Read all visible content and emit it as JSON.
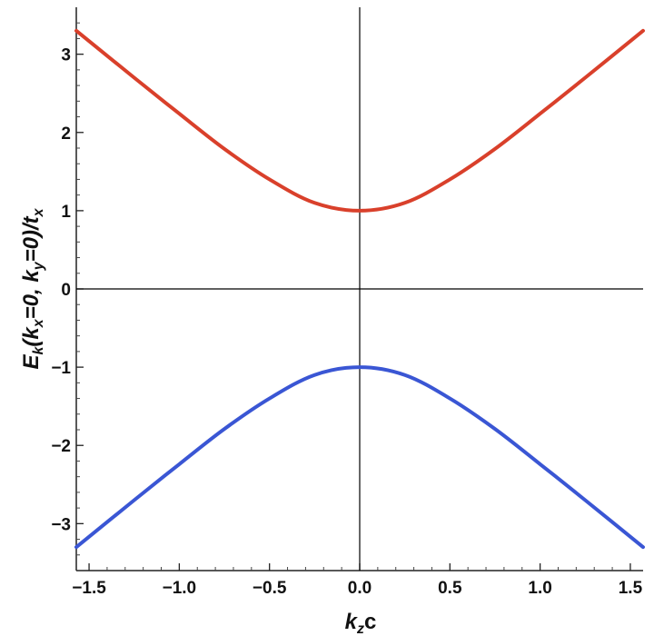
{
  "chart_data": {
    "type": "line",
    "xlabel": "k_z c",
    "ylabel": "E_k(k_x=0, k_y=0)/t_x",
    "xlabel_parts": {
      "k": "k",
      "sub": "z",
      "rest": "c"
    },
    "ylabel_parts": {
      "E": "E",
      "E_sub": "k",
      "open": "(",
      "kx": "k",
      "kx_sub": "x",
      "kx_val": "=0, ",
      "ky": "k",
      "ky_sub": "y",
      "ky_val": "=0)/",
      "t": "t",
      "t_sub": "x"
    },
    "xlim": [
      -1.5708,
      1.5708
    ],
    "ylim": [
      -3.6,
      3.6
    ],
    "x_ticks": [
      -1.5,
      -1.0,
      -0.5,
      0.0,
      0.5,
      1.0,
      1.5
    ],
    "x_tick_labels": [
      "−1.5",
      "−1.0",
      "−0.5",
      "0.0",
      "0.5",
      "1.0",
      "1.5"
    ],
    "y_ticks": [
      -3,
      -2,
      -1,
      0,
      1,
      2,
      3
    ],
    "y_tick_labels": [
      "−3",
      "−2",
      "−1",
      "0",
      "1",
      "2",
      "3"
    ],
    "grid": false,
    "series": [
      {
        "color": "#d9402b",
        "x": [
          -1.5708,
          -1.25,
          -1.0,
          -0.75,
          -0.5,
          -0.25,
          0.0,
          0.25,
          0.5,
          0.75,
          1.0,
          1.25,
          1.5708
        ],
        "y": [
          3.3,
          2.7,
          2.24,
          1.79,
          1.4,
          1.1,
          1.0,
          1.1,
          1.4,
          1.79,
          2.24,
          2.7,
          3.3
        ]
      },
      {
        "color": "#3a56d4",
        "x": [
          -1.5708,
          -1.25,
          -1.0,
          -0.75,
          -0.5,
          -0.25,
          0.0,
          0.25,
          0.5,
          0.75,
          1.0,
          1.25,
          1.5708
        ],
        "y": [
          -3.3,
          -2.7,
          -2.24,
          -1.79,
          -1.4,
          -1.1,
          -1.0,
          -1.1,
          -1.4,
          -1.79,
          -2.24,
          -2.7,
          -3.3
        ]
      }
    ]
  }
}
